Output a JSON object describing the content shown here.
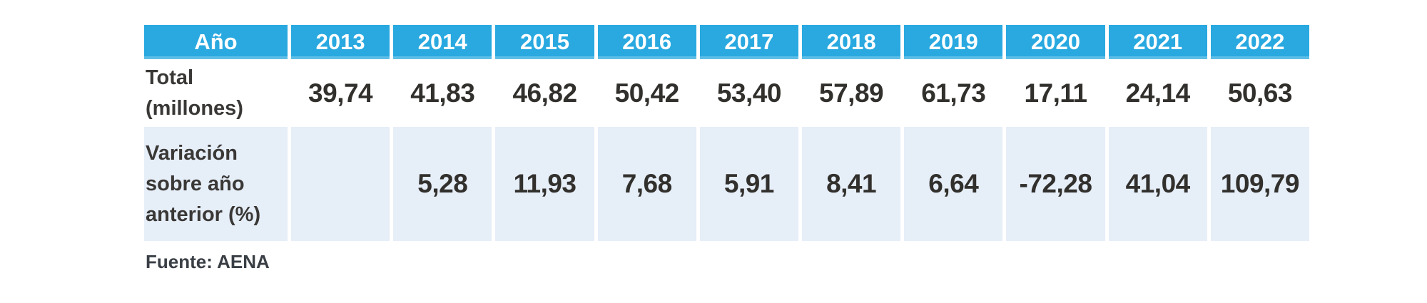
{
  "table": {
    "header": {
      "label": "Año",
      "years": [
        "2013",
        "2014",
        "2015",
        "2016",
        "2017",
        "2018",
        "2019",
        "2020",
        "2021",
        "2022"
      ]
    },
    "rows": [
      {
        "label": "Total (millones)",
        "label_lines": [
          "Total",
          "(millones)"
        ],
        "values": [
          "39,74",
          "41,83",
          "46,82",
          "50,42",
          "53,40",
          "57,89",
          "61,73",
          "17,11",
          "24,14",
          "50,63"
        ]
      },
      {
        "label": "Variación sobre año anterior (%)",
        "label_lines": [
          "Variación",
          "sobre año",
          "anterior (%)"
        ],
        "values": [
          "",
          "5,28",
          "11,93",
          "7,68",
          "5,91",
          "8,41",
          "6,64",
          "-72,28",
          "41,04",
          "109,79"
        ]
      }
    ],
    "source": "Fuente: AENA"
  },
  "colors": {
    "header-bg": "#29A9E0",
    "header-text": "#FFFFFF",
    "row-alt-bg": "#E6EEF8",
    "body-text": "#32302D",
    "label-text": "#3A3836",
    "source-text": "#3A3F46",
    "page-bg": "#FFFFFF"
  },
  "chart_data": {
    "type": "table",
    "title": "",
    "categories": [
      "2013",
      "2014",
      "2015",
      "2016",
      "2017",
      "2018",
      "2019",
      "2020",
      "2021",
      "2022"
    ],
    "series": [
      {
        "name": "Total (millones)",
        "values": [
          39.74,
          41.83,
          46.82,
          50.42,
          53.4,
          57.89,
          61.73,
          17.11,
          24.14,
          50.63
        ]
      },
      {
        "name": "Variación sobre año anterior (%)",
        "values": [
          null,
          5.28,
          11.93,
          7.68,
          5.91,
          8.41,
          6.64,
          -72.28,
          41.04,
          109.79
        ]
      }
    ],
    "source": "Fuente: AENA",
    "legend_position": "none",
    "grid": false
  }
}
